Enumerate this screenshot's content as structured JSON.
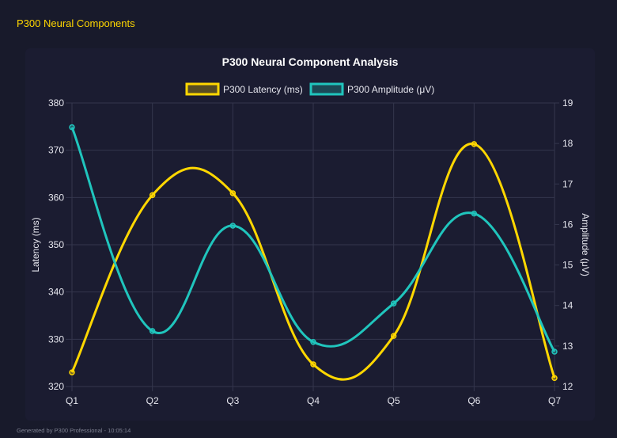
{
  "header": {
    "title": "P300 Neural Components"
  },
  "footer": {
    "text": "Generated by P300 Professional - 10:05:14"
  },
  "chart_data": {
    "type": "line",
    "title": "P300 Neural Component Analysis",
    "categories": [
      "Q1",
      "Q2",
      "Q3",
      "Q4",
      "Q5",
      "Q6",
      "Q7"
    ],
    "series": [
      {
        "name": "P300 Latency (ms)",
        "axis": "left",
        "color": "#ffd700",
        "values": [
          323.0,
          360.5,
          360.9,
          324.7,
          330.7,
          371.3,
          321.8
        ]
      },
      {
        "name": "P300 Amplitude (μV)",
        "axis": "right",
        "color": "#20c5bd",
        "values": [
          18.4,
          13.37,
          15.97,
          13.1,
          14.05,
          16.27,
          12.86
        ]
      }
    ],
    "ylabel": "Latency (ms)",
    "y2label": "Amplitude (μV)",
    "ylim": [
      320,
      380
    ],
    "yticks": [
      "320",
      "330",
      "340",
      "350",
      "360",
      "370",
      "380"
    ],
    "y2lim": [
      12,
      19
    ],
    "y2ticks": [
      "12",
      "13",
      "14",
      "15",
      "16",
      "17",
      "18",
      "19"
    ],
    "grid": true,
    "legend": "top-center"
  }
}
